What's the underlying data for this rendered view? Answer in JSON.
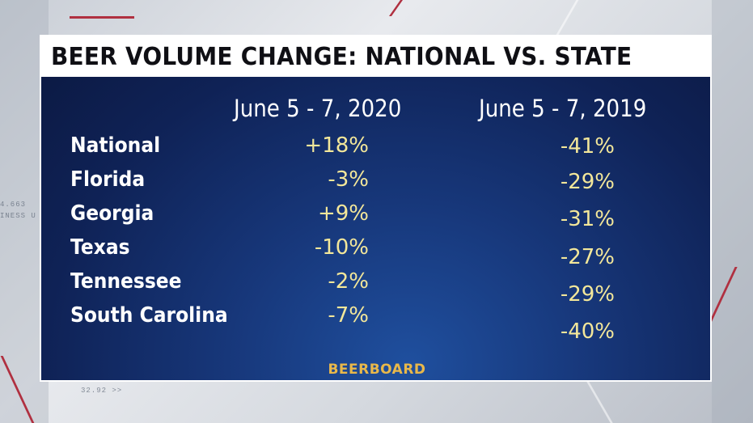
{
  "title": "BEER VOLUME CHANGE: NATIONAL VS. STATE",
  "columns": [
    "June 5 - 7, 2020",
    "June 5 - 7, 2019"
  ],
  "rows": [
    {
      "state": "National",
      "v2020": "+18%",
      "v2019": "-41%"
    },
    {
      "state": "Florida",
      "v2020": "-3%",
      "v2019": "-29%"
    },
    {
      "state": "Georgia",
      "v2020": "+9%",
      "v2019": "-31%"
    },
    {
      "state": "Texas",
      "v2020": "-10%",
      "v2019": "-27%"
    },
    {
      "state": "Tennessee",
      "v2020": "-2%",
      "v2019": "-29%"
    },
    {
      "state": "South Carolina",
      "v2020": "-7%",
      "v2019": "-40%"
    }
  ],
  "source": "BEERBOARD",
  "background_text": [
    "4.663",
    "INESS U",
    "32.92 >>"
  ],
  "colors": {
    "panel": "#0f2256",
    "value": "#f3e79a",
    "source": "#e9b84a",
    "title_bar": "#ffffff"
  }
}
